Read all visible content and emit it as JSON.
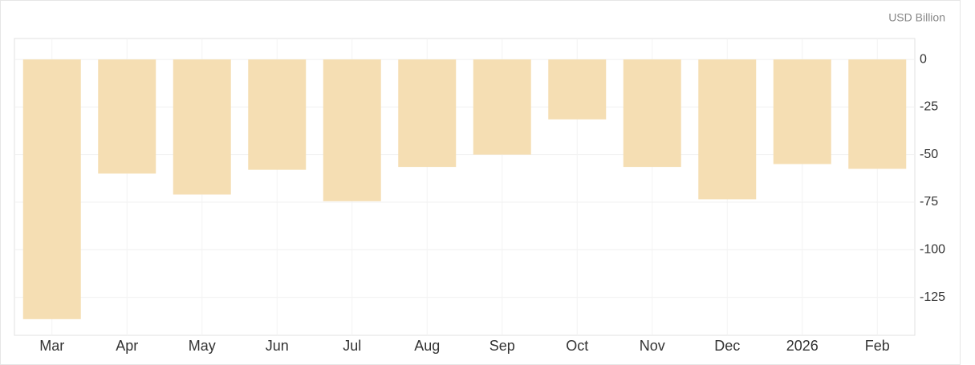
{
  "chart_data": {
    "type": "bar",
    "unit_label": "USD Billion",
    "categories": [
      "Mar",
      "Apr",
      "May",
      "Jun",
      "Jul",
      "Aug",
      "Sep",
      "Oct",
      "Nov",
      "Dec",
      "2026",
      "Feb"
    ],
    "values": [
      -136.5,
      -60,
      -71,
      -58,
      -74.5,
      -56.5,
      -50,
      -31.5,
      -56.5,
      -73.5,
      -55,
      -57.5
    ],
    "color": "#f5deb3",
    "ylim": [
      -145,
      11
    ],
    "yticks": [
      0,
      -25,
      -50,
      -75,
      -100,
      -125
    ],
    "grid": true
  }
}
